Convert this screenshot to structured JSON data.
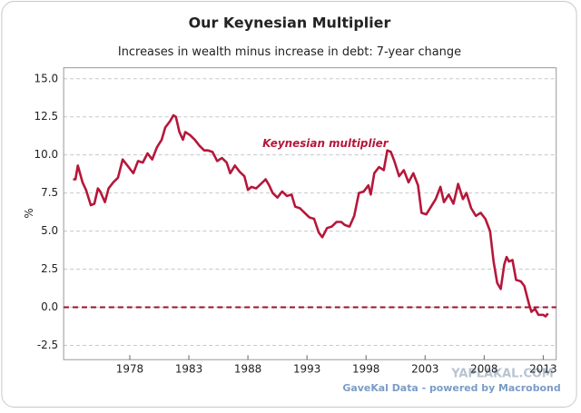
{
  "chart_data": {
    "type": "line",
    "title": "Our Keynesian Multiplier",
    "subtitle": "Increases in wealth  minus increase in debt: 7-year change",
    "y_label": "%",
    "source": "GaveKal Data - powered by Macrobond",
    "watermark": "YAPLAKAL.COM",
    "reference_line": 0,
    "grid": true,
    "xlim": [
      1972.4,
      2014.1
    ],
    "xticks": [
      1978,
      1983,
      1988,
      1993,
      1998,
      2003,
      2008,
      2013
    ],
    "ylim": [
      -3.44,
      15.72
    ],
    "yticks": [
      {
        "value": 15,
        "label": "15.0"
      },
      12.5,
      {
        "value": 10,
        "label": "10.0"
      },
      7.5,
      {
        "value": 5,
        "label": "5.0"
      },
      2.5,
      {
        "value": 0,
        "label": "0.0"
      },
      -2.5
    ],
    "x": [
      1973.2,
      1973.4,
      1973.6,
      1974.0,
      1974.3,
      1974.7,
      1975.0,
      1975.3,
      1975.5,
      1975.9,
      1976.2,
      1976.6,
      1977.0,
      1977.4,
      1977.8,
      1978.3,
      1978.7,
      1979.1,
      1979.5,
      1979.9,
      1980.3,
      1980.7,
      1981.0,
      1981.4,
      1981.7,
      1981.9,
      1982.2,
      1982.5,
      1982.7,
      1983.1,
      1983.5,
      1983.9,
      1984.3,
      1984.6,
      1985.0,
      1985.4,
      1985.8,
      1986.2,
      1986.5,
      1986.9,
      1987.3,
      1987.7,
      1988.0,
      1988.3,
      1988.7,
      1989.1,
      1989.5,
      1989.8,
      1990.1,
      1990.5,
      1990.9,
      1991.3,
      1991.7,
      1992.0,
      1992.4,
      1992.8,
      1993.2,
      1993.6,
      1994.0,
      1994.3,
      1994.7,
      1995.1,
      1995.5,
      1995.9,
      1996.2,
      1996.6,
      1997.0,
      1997.4,
      1997.8,
      1998.2,
      1998.4,
      1998.7,
      1999.1,
      1999.5,
      1999.8,
      2000.1,
      2000.4,
      2000.8,
      2001.2,
      2001.6,
      2002.0,
      2002.4,
      2002.7,
      2003.1,
      2003.5,
      2003.9,
      2004.3,
      2004.6,
      2005.0,
      2005.4,
      2005.8,
      2006.2,
      2006.5,
      2006.9,
      2007.3,
      2007.7,
      2008.1,
      2008.5,
      2008.8,
      2009.1,
      2009.4,
      2009.7,
      2009.9,
      2010.1,
      2010.4,
      2010.7,
      2011.1,
      2011.4,
      2011.8,
      2012.0,
      2012.3,
      2012.6,
      2013.0,
      2013.2,
      2013.4
    ],
    "series": [
      {
        "name": "Keynesian multiplier",
        "color": "#b5173a",
        "values": [
          8.4,
          8.4,
          9.3,
          8.2,
          7.7,
          6.7,
          6.8,
          7.8,
          7.6,
          6.9,
          7.8,
          8.2,
          8.5,
          9.7,
          9.3,
          8.8,
          9.6,
          9.5,
          10.1,
          9.7,
          10.5,
          11.0,
          11.8,
          12.2,
          12.6,
          12.5,
          11.5,
          11.0,
          11.5,
          11.3,
          11.0,
          10.6,
          10.3,
          10.3,
          10.2,
          9.6,
          9.8,
          9.5,
          8.8,
          9.3,
          8.9,
          8.6,
          7.7,
          7.9,
          7.8,
          8.1,
          8.4,
          8.0,
          7.5,
          7.2,
          7.6,
          7.3,
          7.4,
          6.6,
          6.5,
          6.2,
          5.9,
          5.8,
          4.9,
          4.6,
          5.2,
          5.3,
          5.6,
          5.6,
          5.4,
          5.3,
          6.0,
          7.5,
          7.6,
          8.0,
          7.4,
          8.8,
          9.2,
          9.0,
          10.3,
          10.2,
          9.6,
          8.6,
          9.0,
          8.2,
          8.8,
          8.0,
          6.2,
          6.1,
          6.6,
          7.1,
          7.9,
          6.9,
          7.4,
          6.8,
          8.1,
          7.1,
          7.5,
          6.5,
          6.0,
          6.2,
          5.8,
          5.0,
          3.0,
          1.6,
          1.2,
          2.8,
          3.3,
          3.0,
          3.1,
          1.8,
          1.7,
          1.4,
          0.2,
          -0.3,
          -0.1,
          -0.5,
          -0.5,
          -0.6,
          -0.4
        ]
      }
    ]
  }
}
